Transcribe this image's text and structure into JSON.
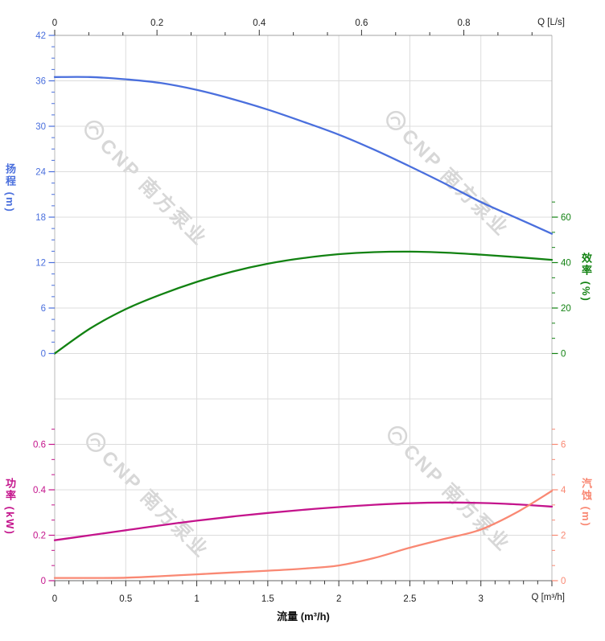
{
  "watermark": {
    "text": "CNP 南方泵业",
    "logo_name": "cnp-logo",
    "color": "#d7d7d7"
  },
  "chart_data": {
    "type": "line",
    "title": "",
    "x_bottom": {
      "label": "流量 (m³/h)",
      "corner_label": "Q [m³/h]",
      "unit": "m³/h",
      "ticks": [
        0,
        0.5,
        1,
        1.5,
        2,
        2.5,
        3
      ],
      "range": [
        0,
        3.5
      ],
      "minor_step": 0.1,
      "text_color": "#222222"
    },
    "x_top": {
      "corner_label": "Q [L/s]",
      "unit": "L/s",
      "ticks": [
        0,
        0.2,
        0.4,
        0.6,
        0.8
      ],
      "range": [
        0,
        0.972
      ],
      "text_color": "#222222"
    },
    "y_axes": [
      {
        "id": "head",
        "title": "扬程 (m)",
        "side": "left",
        "section": "top",
        "color": "#4a6fdd",
        "ticks": [
          0,
          6,
          12,
          18,
          24,
          30,
          36,
          42
        ],
        "range": [
          0,
          42
        ]
      },
      {
        "id": "efficiency",
        "title": "效率 (%)",
        "side": "right",
        "section": "top",
        "color": "#128212",
        "ticks": [
          0,
          20,
          40,
          60
        ],
        "range": [
          0,
          60
        ]
      },
      {
        "id": "power",
        "title": "功率 (kW)",
        "side": "left",
        "section": "bottom",
        "color": "#c4148c",
        "ticks": [
          0,
          0.2,
          0.4,
          0.6
        ],
        "range": [
          0,
          0.6
        ]
      },
      {
        "id": "npsh",
        "title": "汽蚀 (m)",
        "side": "right",
        "section": "bottom",
        "color": "#f98873",
        "ticks": [
          0,
          2,
          4,
          6
        ],
        "range": [
          0,
          6
        ]
      }
    ],
    "x_values": [
      0,
      0.25,
      0.5,
      0.75,
      1,
      1.25,
      1.5,
      1.75,
      2,
      2.25,
      2.5,
      2.75,
      3,
      3.25,
      3.5
    ],
    "series": [
      {
        "name": "head",
        "axis": "head",
        "color": "#4a6fdd",
        "values": [
          36.5,
          36.5,
          36.2,
          35.7,
          34.8,
          33.6,
          32.2,
          30.6,
          28.9,
          26.9,
          24.7,
          22.4,
          20.0,
          17.9,
          15.8
        ]
      },
      {
        "name": "efficiency",
        "axis": "efficiency",
        "color": "#128212",
        "values": [
          0,
          11,
          19.5,
          26,
          31.5,
          36,
          39.5,
          42,
          43.7,
          44.6,
          44.8,
          44.4,
          43.5,
          42.4,
          41.2
        ]
      },
      {
        "name": "power",
        "axis": "power",
        "color": "#c4148c",
        "values": [
          0.178,
          0.2,
          0.222,
          0.244,
          0.264,
          0.282,
          0.298,
          0.312,
          0.324,
          0.334,
          0.341,
          0.344,
          0.342,
          0.336,
          0.326
        ]
      },
      {
        "name": "npsh",
        "axis": "npsh",
        "color": "#f98873",
        "values": [
          0.12,
          0.12,
          0.13,
          0.2,
          0.28,
          0.36,
          0.44,
          0.53,
          0.67,
          1.0,
          1.45,
          1.85,
          2.25,
          3.0,
          3.95
        ]
      }
    ],
    "grid": true,
    "legend": "none"
  }
}
